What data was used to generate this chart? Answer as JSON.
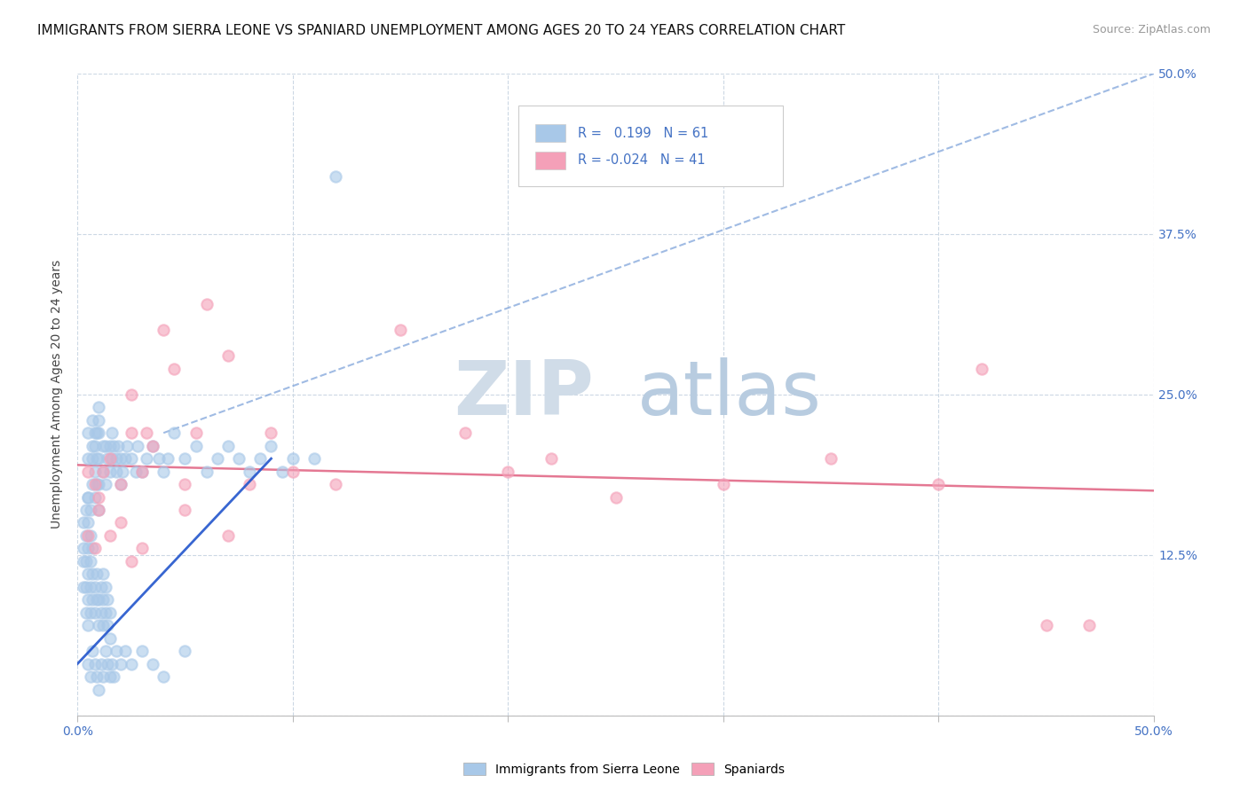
{
  "title": "IMMIGRANTS FROM SIERRA LEONE VS SPANIARD UNEMPLOYMENT AMONG AGES 20 TO 24 YEARS CORRELATION CHART",
  "source": "Source: ZipAtlas.com",
  "ylabel": "Unemployment Among Ages 20 to 24 years",
  "xlim": [
    0.0,
    0.5
  ],
  "ylim": [
    0.0,
    0.5
  ],
  "xticks": [
    0.0,
    0.1,
    0.2,
    0.3,
    0.4,
    0.5
  ],
  "yticks": [
    0.0,
    0.125,
    0.25,
    0.375,
    0.5
  ],
  "yticklabels_right": [
    "",
    "12.5%",
    "25.0%",
    "37.5%",
    "50.0%"
  ],
  "blue_scatter_color": "#a8c8e8",
  "pink_scatter_color": "#f4a0b8",
  "blue_line_color": "#2255cc",
  "blue_dash_color": "#88aadd",
  "pink_line_color": "#e06080",
  "watermark_zip": "ZIP",
  "watermark_atlas": "atlas",
  "watermark_color": "#d8e4f0",
  "legend_R_blue": "0.199",
  "legend_N_blue": "61",
  "legend_R_pink": "-0.024",
  "legend_N_pink": "41",
  "legend_label_blue": "Immigrants from Sierra Leone",
  "legend_label_pink": "Spaniards",
  "blue_scatter_x": [
    0.005,
    0.005,
    0.005,
    0.007,
    0.007,
    0.007,
    0.007,
    0.008,
    0.008,
    0.008,
    0.008,
    0.009,
    0.009,
    0.009,
    0.01,
    0.01,
    0.01,
    0.01,
    0.01,
    0.01,
    0.012,
    0.012,
    0.013,
    0.013,
    0.014,
    0.015,
    0.015,
    0.016,
    0.016,
    0.017,
    0.018,
    0.018,
    0.019,
    0.02,
    0.02,
    0.021,
    0.022,
    0.023,
    0.025,
    0.027,
    0.028,
    0.03,
    0.032,
    0.035,
    0.038,
    0.04,
    0.042,
    0.045,
    0.05,
    0.055,
    0.06,
    0.065,
    0.07,
    0.075,
    0.08,
    0.085,
    0.09,
    0.095,
    0.1,
    0.11,
    0.12
  ],
  "blue_scatter_y": [
    0.17,
    0.2,
    0.22,
    0.18,
    0.2,
    0.21,
    0.23,
    0.17,
    0.19,
    0.21,
    0.22,
    0.18,
    0.2,
    0.22,
    0.16,
    0.18,
    0.2,
    0.22,
    0.23,
    0.24,
    0.19,
    0.21,
    0.18,
    0.21,
    0.2,
    0.19,
    0.21,
    0.2,
    0.22,
    0.21,
    0.19,
    0.2,
    0.21,
    0.18,
    0.2,
    0.19,
    0.2,
    0.21,
    0.2,
    0.19,
    0.21,
    0.19,
    0.2,
    0.21,
    0.2,
    0.19,
    0.2,
    0.22,
    0.2,
    0.21,
    0.19,
    0.2,
    0.21,
    0.2,
    0.19,
    0.2,
    0.21,
    0.19,
    0.2,
    0.2,
    0.42
  ],
  "blue_cluster_x": [
    0.003,
    0.003,
    0.003,
    0.003,
    0.004,
    0.004,
    0.004,
    0.004,
    0.004,
    0.005,
    0.005,
    0.005,
    0.005,
    0.005,
    0.005,
    0.006,
    0.006,
    0.006,
    0.006,
    0.006,
    0.007,
    0.007,
    0.007,
    0.008,
    0.008,
    0.009,
    0.009,
    0.01,
    0.01,
    0.011,
    0.011,
    0.012,
    0.012,
    0.012,
    0.013,
    0.013,
    0.014,
    0.014,
    0.015,
    0.015
  ],
  "blue_cluster_y": [
    0.1,
    0.12,
    0.13,
    0.15,
    0.08,
    0.1,
    0.12,
    0.14,
    0.16,
    0.07,
    0.09,
    0.11,
    0.13,
    0.15,
    0.17,
    0.08,
    0.1,
    0.12,
    0.14,
    0.16,
    0.09,
    0.11,
    0.13,
    0.08,
    0.1,
    0.09,
    0.11,
    0.07,
    0.09,
    0.08,
    0.1,
    0.07,
    0.09,
    0.11,
    0.08,
    0.1,
    0.07,
    0.09,
    0.06,
    0.08
  ],
  "blue_low_x": [
    0.005,
    0.006,
    0.007,
    0.008,
    0.009,
    0.01,
    0.011,
    0.012,
    0.013,
    0.014,
    0.015,
    0.016,
    0.017,
    0.018,
    0.02,
    0.022,
    0.025,
    0.03,
    0.035,
    0.04,
    0.05
  ],
  "blue_low_y": [
    0.04,
    0.03,
    0.05,
    0.04,
    0.03,
    0.02,
    0.04,
    0.03,
    0.05,
    0.04,
    0.03,
    0.04,
    0.03,
    0.05,
    0.04,
    0.05,
    0.04,
    0.05,
    0.04,
    0.03,
    0.05
  ],
  "pink_scatter_x": [
    0.005,
    0.008,
    0.01,
    0.012,
    0.015,
    0.02,
    0.025,
    0.025,
    0.03,
    0.032,
    0.035,
    0.04,
    0.045,
    0.05,
    0.055,
    0.06,
    0.07,
    0.08,
    0.09,
    0.1,
    0.12,
    0.15,
    0.18,
    0.2,
    0.22,
    0.25,
    0.3,
    0.35,
    0.4,
    0.42,
    0.45,
    0.47,
    0.005,
    0.008,
    0.01,
    0.015,
    0.02,
    0.025,
    0.03,
    0.05,
    0.07
  ],
  "pink_scatter_y": [
    0.19,
    0.18,
    0.17,
    0.19,
    0.2,
    0.18,
    0.22,
    0.25,
    0.19,
    0.22,
    0.21,
    0.3,
    0.27,
    0.18,
    0.22,
    0.32,
    0.28,
    0.18,
    0.22,
    0.19,
    0.18,
    0.3,
    0.22,
    0.19,
    0.2,
    0.17,
    0.18,
    0.2,
    0.18,
    0.27,
    0.07,
    0.07,
    0.14,
    0.13,
    0.16,
    0.14,
    0.15,
    0.12,
    0.13,
    0.16,
    0.14
  ],
  "grid_color": "#ccd8e4",
  "title_fontsize": 11,
  "axis_label_fontsize": 10,
  "tick_fontsize": 10,
  "background_color": "#ffffff"
}
